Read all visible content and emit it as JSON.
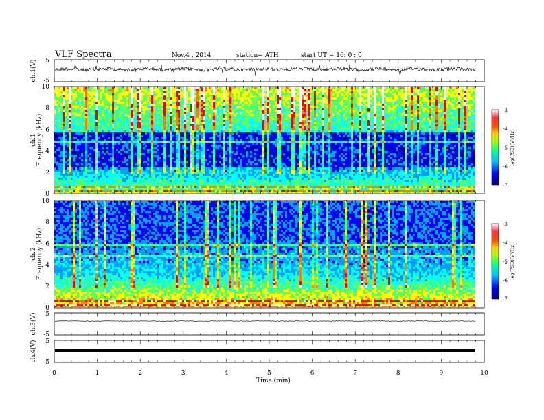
{
  "header": {
    "title": "VLF  Spectra",
    "date": "Nov.4  , 2014",
    "station": "station= ATH",
    "start": "start  UT  =   16: 0  : 0"
  },
  "chart_data": [
    {
      "type": "line",
      "panel": "ch1-waveform",
      "ylabel": "ch.1(V)",
      "ylim": [
        -5,
        5
      ],
      "y_ticks": [
        "5",
        "-5"
      ],
      "xlim": [
        0,
        10
      ],
      "color": "#000000"
    },
    {
      "type": "heatmap",
      "panel": "ch1-spectrogram",
      "ylabel_lines": [
        "ch.1",
        "Frequency  (kHz)"
      ],
      "ylim": [
        0,
        10
      ],
      "y_ticks": [
        "0",
        "2",
        "4",
        "6",
        "8",
        "10"
      ],
      "xlim": [
        0,
        9.83
      ],
      "colorbar": {
        "label": "log(PSD)(V²/Hz)",
        "range": [
          -7,
          -3
        ],
        "ticks": [
          "-3",
          "-4",
          "-5",
          "-6",
          "-7"
        ]
      }
    },
    {
      "type": "heatmap",
      "panel": "ch2-spectrogram",
      "ylabel_lines": [
        "ch.2",
        "Frequency  (kHz)"
      ],
      "ylim": [
        0,
        10
      ],
      "y_ticks": [
        "0",
        "2",
        "4",
        "6",
        "8",
        "10"
      ],
      "xlim": [
        0,
        9.83
      ],
      "colorbar": {
        "label": "log(PSD)(V²/Hz)",
        "range": [
          -7,
          -3
        ],
        "ticks": [
          "-3",
          "-4",
          "-5",
          "-6",
          "-7"
        ]
      }
    },
    {
      "type": "line",
      "panel": "ch3-waveform",
      "ylabel": "ch.3(V)",
      "ylim": [
        -5,
        5
      ],
      "y_ticks": [
        "5",
        "-5"
      ],
      "xlim": [
        0,
        10
      ]
    },
    {
      "type": "line",
      "panel": "ch4-waveform",
      "ylabel": "ch.4(V)",
      "ylim": [
        -5,
        5
      ],
      "y_ticks": [
        "5",
        "-5"
      ],
      "xlim": [
        0,
        10
      ]
    }
  ],
  "x_axis": {
    "label": "Time  (min)",
    "range": [
      0,
      10
    ],
    "ticks": [
      "0",
      "1",
      "2",
      "3",
      "4",
      "5",
      "6",
      "7",
      "8",
      "9",
      "10"
    ]
  },
  "colormap": [
    "#000090",
    "#0000ff",
    "#00a0ff",
    "#00ffff",
    "#60ff60",
    "#ffff00",
    "#ff8000",
    "#ff0000",
    "#ffffff"
  ]
}
